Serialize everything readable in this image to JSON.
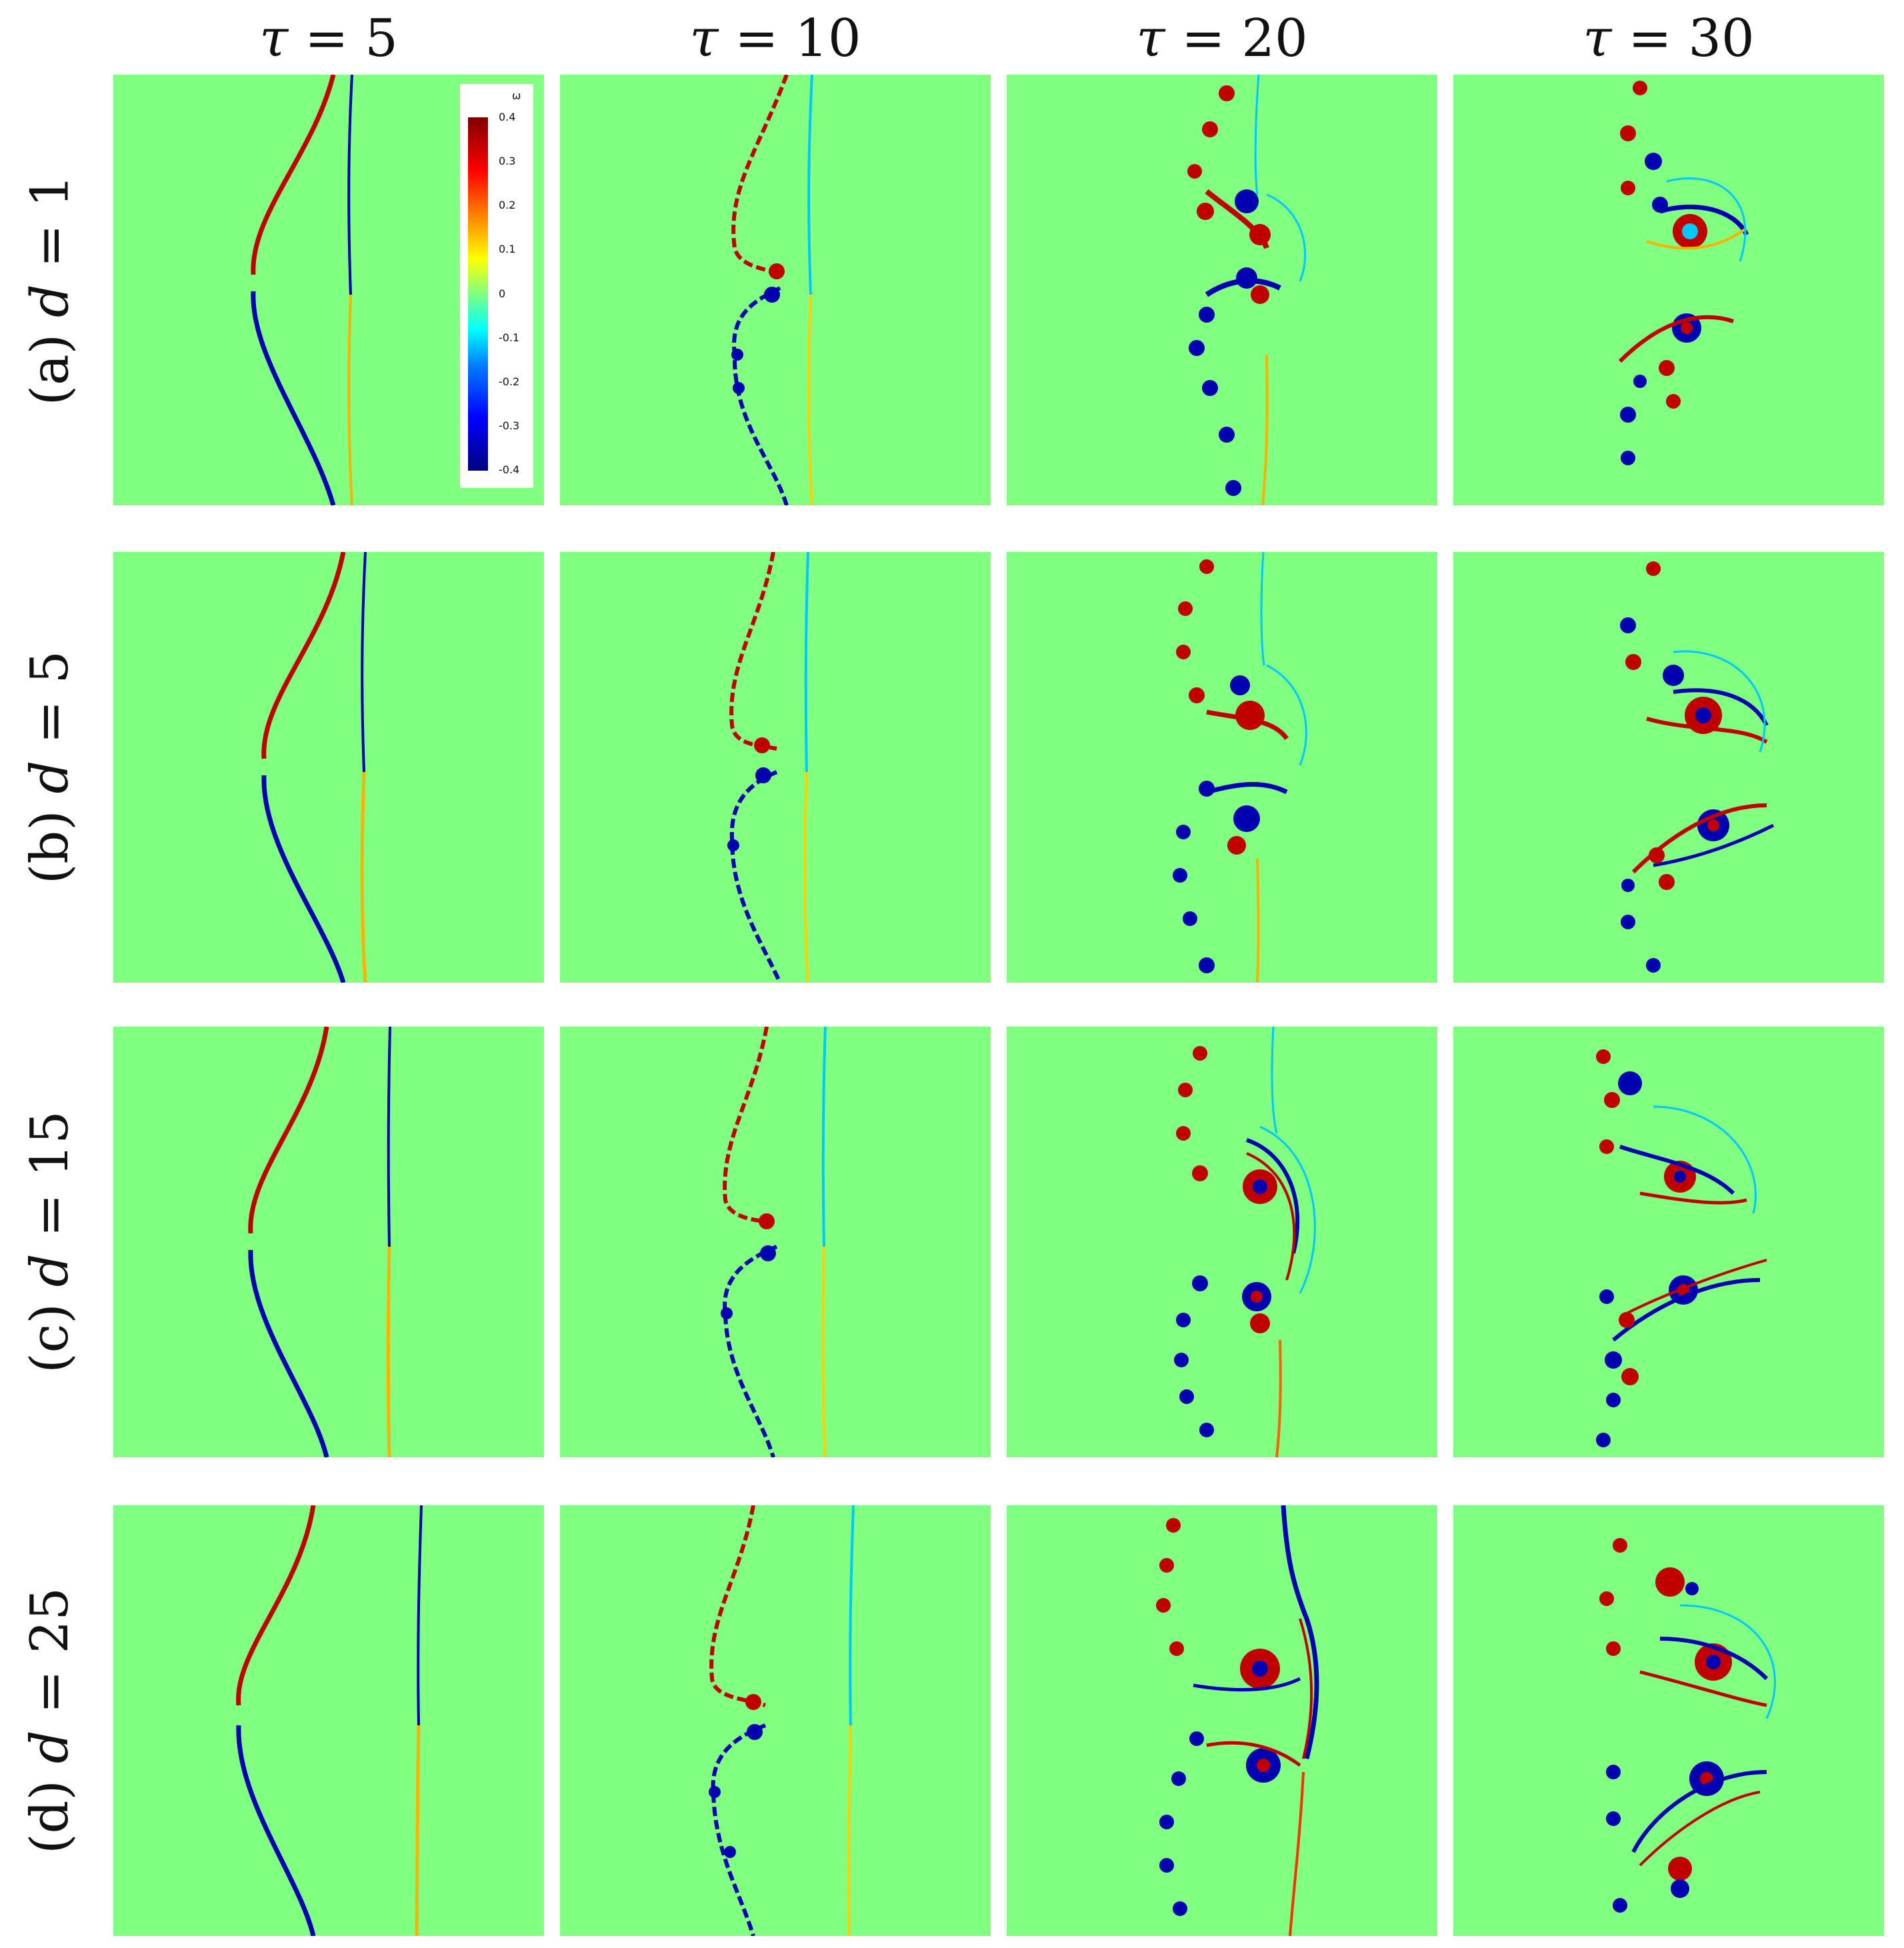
{
  "columns": [
    {
      "symbol": "τ",
      "eq": " = ",
      "value": "5"
    },
    {
      "symbol": "τ",
      "eq": " = ",
      "value": "10"
    },
    {
      "symbol": "τ",
      "eq": " = ",
      "value": "20"
    },
    {
      "symbol": "τ",
      "eq": " = ",
      "value": "30"
    }
  ],
  "rows": [
    {
      "prefix": "(a) ",
      "symbol": "d",
      "eq": " = ",
      "value": "1"
    },
    {
      "prefix": "(b) ",
      "symbol": "d",
      "eq": " = ",
      "value": "5"
    },
    {
      "prefix": "(c) ",
      "symbol": "d",
      "eq": " = ",
      "value": "15"
    },
    {
      "prefix": "(d) ",
      "symbol": "d",
      "eq": " = ",
      "value": "25"
    }
  ],
  "colorbar": {
    "title": "ω",
    "ticks": [
      "0.4",
      "0.3",
      "0.2",
      "0.1",
      "0",
      "-0.1",
      "-0.2",
      "-0.3",
      "-0.4"
    ]
  },
  "colors": {
    "background": "#80ff80",
    "positive": "#c00000",
    "negative": "#0000b0",
    "weak_positive": "#ffd000",
    "weak_negative": "#00c8ff"
  }
}
